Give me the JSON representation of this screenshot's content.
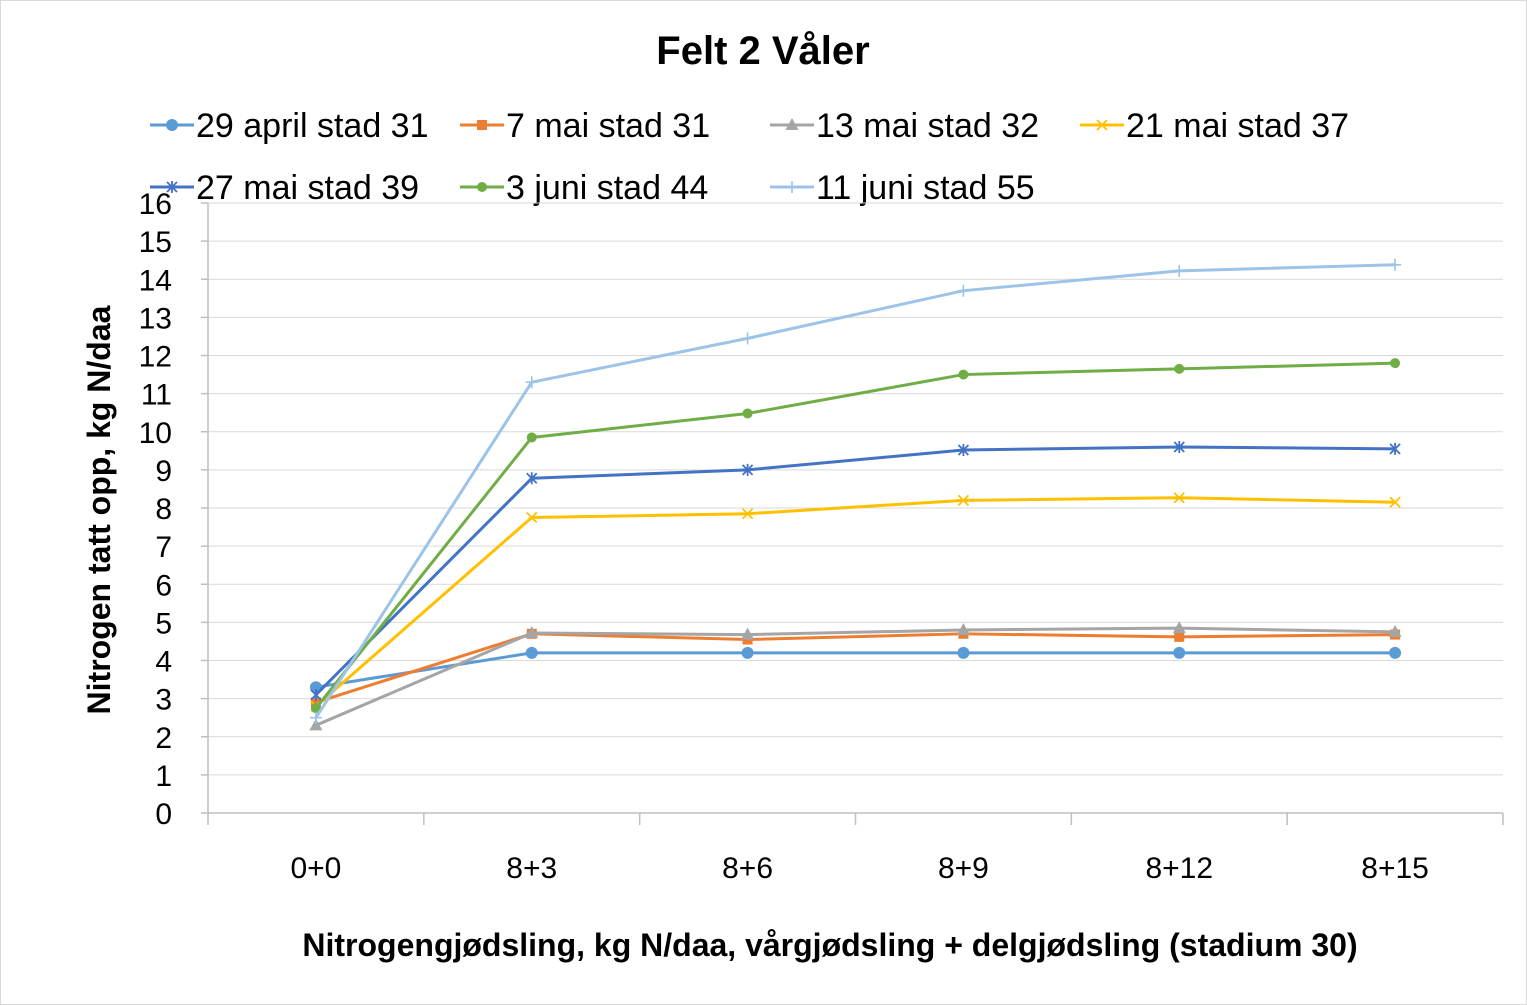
{
  "chart_data": {
    "type": "line",
    "title": "Felt 2 Våler",
    "xlabel": "Nitrogengjødsling, kg N/daa, vårgjødsling + delgjødsling (stadium 30)",
    "ylabel": "Nitrogen tatt opp, kg N/daa",
    "categories": [
      "0+0",
      "8+3",
      "8+6",
      "8+9",
      "8+12",
      "8+15"
    ],
    "ylim": [
      0,
      16
    ],
    "yticks": [
      0,
      1,
      2,
      3,
      4,
      5,
      6,
      7,
      8,
      9,
      10,
      11,
      12,
      13,
      14,
      15,
      16
    ],
    "grid": true,
    "legend_position": "top",
    "series": [
      {
        "name": "29 april stad 31",
        "color": "#5b9bd5",
        "marker": "circle",
        "values": [
          3.3,
          4.2,
          4.2,
          4.2,
          4.2,
          4.2
        ]
      },
      {
        "name": "7 mai stad 31",
        "color": "#ed7d31",
        "marker": "square",
        "values": [
          2.9,
          4.7,
          4.55,
          4.7,
          4.62,
          4.68
        ]
      },
      {
        "name": "13 mai stad 32",
        "color": "#a5a5a5",
        "marker": "triangle",
        "values": [
          2.3,
          4.72,
          4.68,
          4.8,
          4.85,
          4.75
        ]
      },
      {
        "name": "21 mai stad 37",
        "color": "#ffc000",
        "marker": "x",
        "values": [
          2.8,
          7.75,
          7.85,
          8.2,
          8.27,
          8.15
        ]
      },
      {
        "name": "27 mai stad 39",
        "color": "#4472c4",
        "marker": "star",
        "values": [
          3.1,
          8.78,
          9.0,
          9.52,
          9.6,
          9.55
        ]
      },
      {
        "name": "3 juni stad 44",
        "color": "#70ad47",
        "marker": "dot",
        "values": [
          2.75,
          9.85,
          10.48,
          11.5,
          11.65,
          11.8
        ]
      },
      {
        "name": "11 juni stad 55",
        "color": "#9dc3e6",
        "marker": "plus",
        "values": [
          2.5,
          11.3,
          12.45,
          13.7,
          14.22,
          14.38
        ]
      }
    ]
  }
}
